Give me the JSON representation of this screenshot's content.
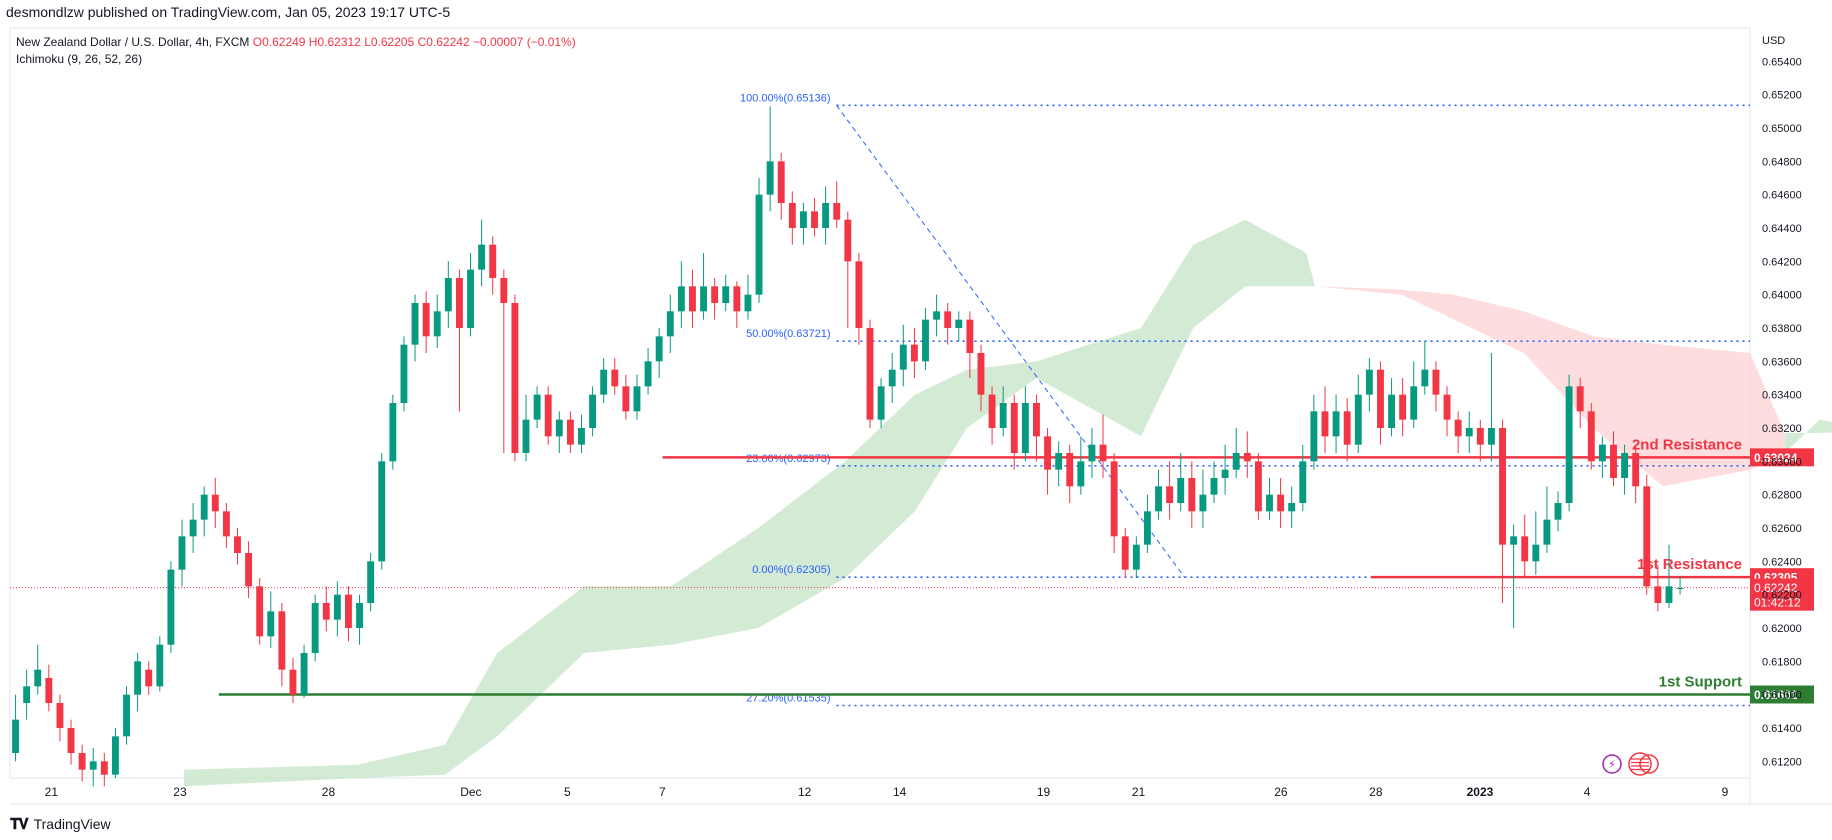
{
  "header": {
    "published": "desmondlzw published on TradingView.com, Jan 05, 2023 19:17 UTC-5",
    "symbol": "New Zealand Dollar / U.S. Dollar, 4h, FXCM",
    "open": "O0.62249",
    "high": "H0.62312",
    "low": "L0.62205",
    "close": "C0.62242",
    "change": "−0.00007 (−0.01%)",
    "indicator": "Ichimoku (9, 26, 52, 26)"
  },
  "footer": {
    "logo": "\u0017TV",
    "brand": "TradingView"
  },
  "colors": {
    "bull": "#089981",
    "bear": "#f23645",
    "fib": "#2962ff",
    "fibtext": "#2962ff",
    "cloud_bull": "#c8e6c9",
    "cloud_bear": "#fdd5d4",
    "resistance": "#f23645",
    "support": "#2e7d32",
    "price_line": "#f23645"
  },
  "chart_data": {
    "type": "candlestick",
    "title": "New Zealand Dollar / U.S. Dollar, 4h, FXCM",
    "currency": "USD",
    "ylim": [
      0.611,
      0.656
    ],
    "y_ticks": [
      "0.65400",
      "0.65200",
      "0.65000",
      "0.64800",
      "0.64600",
      "0.64400",
      "0.64200",
      "0.64000",
      "0.63800",
      "0.63600",
      "0.63400",
      "0.63200",
      "0.63000",
      "0.62800",
      "0.62600",
      "0.62400",
      "0.62200",
      "0.62000",
      "0.61800",
      "0.61600",
      "0.61400",
      "0.61200"
    ],
    "x_ticks": [
      {
        "label": "21",
        "pos": 0.027
      },
      {
        "label": "23",
        "pos": 0.111
      },
      {
        "label": "28",
        "pos": 0.208
      },
      {
        "label": "Dec",
        "pos": 0.301
      },
      {
        "label": "5",
        "pos": 0.364
      },
      {
        "label": "7",
        "pos": 0.426
      },
      {
        "label": "12",
        "pos": 0.519
      },
      {
        "label": "14",
        "pos": 0.581
      },
      {
        "label": "19",
        "pos": 0.675
      },
      {
        "label": "21",
        "pos": 0.737
      },
      {
        "label": "26",
        "pos": 0.83
      },
      {
        "label": "28",
        "pos": 0.892
      },
      {
        "label": "2023",
        "pos": 0.96
      },
      {
        "label": "4",
        "pos": 1.03
      },
      {
        "label": "9",
        "pos": 1.12
      }
    ],
    "levels": [
      {
        "name": "2nd Resistance",
        "price": 0.63024,
        "label": "0.63024",
        "color": "#f23645",
        "x_start_frac": 0.375
      },
      {
        "name": "1st Resistance",
        "price": 0.62305,
        "label": "0.62305",
        "color": "#f23645",
        "x_start_frac": 0.782
      },
      {
        "name": "1st Support",
        "price": 0.61601,
        "label": "0.61601",
        "color": "#2e7d32",
        "x_start_frac": 0.12
      }
    ],
    "current_price": {
      "price": 0.62242,
      "label": "0.62242",
      "countdown": "01:42:12"
    },
    "fib": [
      {
        "label": "100.00%(0.65136)",
        "price": 0.65136
      },
      {
        "label": "50.00%(0.63721)",
        "price": 0.63721
      },
      {
        "label": "23.60%(0.62973)",
        "price": 0.62973
      },
      {
        "label": "0.00%(0.62305)",
        "price": 0.62305
      },
      {
        "label": "27.20%(0.61535)",
        "price": 0.61535
      }
    ],
    "cloud": [
      {
        "t": 0.1,
        "a": 0.6115,
        "b": 0.6105
      },
      {
        "t": 0.2,
        "a": 0.6118,
        "b": 0.611
      },
      {
        "t": 0.25,
        "a": 0.613,
        "b": 0.6112
      },
      {
        "t": 0.28,
        "a": 0.6185,
        "b": 0.6135
      },
      {
        "t": 0.33,
        "a": 0.6225,
        "b": 0.6185
      },
      {
        "t": 0.38,
        "a": 0.6225,
        "b": 0.619
      },
      {
        "t": 0.43,
        "a": 0.626,
        "b": 0.62
      },
      {
        "t": 0.48,
        "a": 0.63,
        "b": 0.623
      },
      {
        "t": 0.52,
        "a": 0.634,
        "b": 0.627
      },
      {
        "t": 0.55,
        "a": 0.6355,
        "b": 0.632
      },
      {
        "t": 0.59,
        "a": 0.636,
        "b": 0.635
      },
      {
        "t": 0.65,
        "a": 0.638,
        "b": 0.6315
      },
      {
        "t": 0.68,
        "a": 0.643,
        "b": 0.638
      },
      {
        "t": 0.71,
        "a": 0.6445,
        "b": 0.6405
      },
      {
        "t": 0.745,
        "a": 0.6425,
        "b": 0.6405
      },
      {
        "t": 0.75,
        "a": 0.6405,
        "b": 0.6405
      },
      {
        "t": 0.8,
        "a": 0.64,
        "b": 0.6403
      },
      {
        "t": 0.83,
        "a": 0.6385,
        "b": 0.64
      },
      {
        "t": 0.87,
        "a": 0.6365,
        "b": 0.639
      },
      {
        "t": 0.91,
        "a": 0.632,
        "b": 0.6375
      },
      {
        "t": 0.95,
        "a": 0.6285,
        "b": 0.637
      },
      {
        "t": 1.0,
        "a": 0.6295,
        "b": 0.6365
      },
      {
        "t": 1.02,
        "a": 0.6305,
        "b": 0.6317
      },
      {
        "t": 1.04,
        "a": 0.6325,
        "b": 0.6317
      },
      {
        "t": 1.065,
        "a": 0.632,
        "b": 0.6318
      },
      {
        "t": 1.07,
        "a": 0.6288,
        "b": 0.6288
      },
      {
        "t": 1.095,
        "a": 0.6285,
        "b": 0.629
      }
    ],
    "candles": [
      [
        0.6125,
        0.6145,
        0.612,
        0.616
      ],
      [
        0.6155,
        0.6165,
        0.6145,
        0.6175
      ],
      [
        0.6165,
        0.6175,
        0.616,
        0.619
      ],
      [
        0.617,
        0.6155,
        0.615,
        0.6178
      ],
      [
        0.6155,
        0.614,
        0.6132,
        0.616
      ],
      [
        0.614,
        0.6125,
        0.6118,
        0.6145
      ],
      [
        0.6125,
        0.6115,
        0.6108,
        0.613
      ],
      [
        0.6115,
        0.612,
        0.6105,
        0.6128
      ],
      [
        0.612,
        0.6112,
        0.6105,
        0.6125
      ],
      [
        0.6112,
        0.6135,
        0.611,
        0.614
      ],
      [
        0.6135,
        0.616,
        0.613,
        0.6165
      ],
      [
        0.616,
        0.618,
        0.615,
        0.6185
      ],
      [
        0.6175,
        0.6165,
        0.616,
        0.618
      ],
      [
        0.6165,
        0.619,
        0.6162,
        0.6195
      ],
      [
        0.619,
        0.6235,
        0.6185,
        0.624
      ],
      [
        0.6235,
        0.6255,
        0.6225,
        0.6265
      ],
      [
        0.6255,
        0.6265,
        0.6245,
        0.6275
      ],
      [
        0.6265,
        0.628,
        0.6255,
        0.6285
      ],
      [
        0.628,
        0.627,
        0.626,
        0.629
      ],
      [
        0.627,
        0.6255,
        0.6248,
        0.6275
      ],
      [
        0.6255,
        0.6245,
        0.6238,
        0.626
      ],
      [
        0.6245,
        0.6225,
        0.6218,
        0.6252
      ],
      [
        0.6225,
        0.6195,
        0.619,
        0.623
      ],
      [
        0.6195,
        0.621,
        0.6188,
        0.6222
      ],
      [
        0.621,
        0.6175,
        0.6165,
        0.6215
      ],
      [
        0.6175,
        0.616,
        0.6155,
        0.6182
      ],
      [
        0.616,
        0.6185,
        0.6158,
        0.619
      ],
      [
        0.6185,
        0.6215,
        0.618,
        0.622
      ],
      [
        0.6215,
        0.6205,
        0.6198,
        0.6225
      ],
      [
        0.6205,
        0.622,
        0.6195,
        0.6228
      ],
      [
        0.622,
        0.62,
        0.6192,
        0.6225
      ],
      [
        0.62,
        0.6215,
        0.619,
        0.622
      ],
      [
        0.6215,
        0.624,
        0.621,
        0.6245
      ],
      [
        0.624,
        0.63,
        0.6235,
        0.6305
      ],
      [
        0.63,
        0.6335,
        0.6295,
        0.634
      ],
      [
        0.6335,
        0.637,
        0.633,
        0.6375
      ],
      [
        0.637,
        0.6395,
        0.636,
        0.64
      ],
      [
        0.6395,
        0.6375,
        0.6365,
        0.6402
      ],
      [
        0.6375,
        0.639,
        0.6368,
        0.64
      ],
      [
        0.639,
        0.641,
        0.638,
        0.642
      ],
      [
        0.641,
        0.638,
        0.633,
        0.6415
      ],
      [
        0.638,
        0.6415,
        0.6375,
        0.6425
      ],
      [
        0.6415,
        0.643,
        0.6405,
        0.6445
      ],
      [
        0.643,
        0.641,
        0.64,
        0.6435
      ],
      [
        0.641,
        0.6395,
        0.6305,
        0.6415
      ],
      [
        0.6395,
        0.6305,
        0.63,
        0.64
      ],
      [
        0.6305,
        0.6325,
        0.63,
        0.634
      ],
      [
        0.6325,
        0.634,
        0.632,
        0.6345
      ],
      [
        0.634,
        0.6315,
        0.631,
        0.6345
      ],
      [
        0.6315,
        0.6325,
        0.6305,
        0.633
      ],
      [
        0.6325,
        0.631,
        0.6305,
        0.633
      ],
      [
        0.631,
        0.632,
        0.6305,
        0.6328
      ],
      [
        0.632,
        0.634,
        0.6315,
        0.6345
      ],
      [
        0.634,
        0.6355,
        0.6335,
        0.6362
      ],
      [
        0.6355,
        0.6345,
        0.634,
        0.6362
      ],
      [
        0.6345,
        0.633,
        0.6325,
        0.6352
      ],
      [
        0.633,
        0.6345,
        0.6325,
        0.6352
      ],
      [
        0.6345,
        0.636,
        0.634,
        0.6368
      ],
      [
        0.636,
        0.6375,
        0.635,
        0.638
      ],
      [
        0.6375,
        0.639,
        0.6365,
        0.64
      ],
      [
        0.639,
        0.6405,
        0.638,
        0.642
      ],
      [
        0.6405,
        0.639,
        0.638,
        0.6415
      ],
      [
        0.639,
        0.6405,
        0.6385,
        0.6425
      ],
      [
        0.6405,
        0.6395,
        0.6385,
        0.641
      ],
      [
        0.6395,
        0.6405,
        0.639,
        0.6412
      ],
      [
        0.6405,
        0.639,
        0.638,
        0.6408
      ],
      [
        0.639,
        0.64,
        0.6385,
        0.6412
      ],
      [
        0.64,
        0.646,
        0.6395,
        0.647
      ],
      [
        0.646,
        0.648,
        0.645,
        0.6513
      ],
      [
        0.648,
        0.6455,
        0.6445,
        0.6485
      ],
      [
        0.6455,
        0.644,
        0.643,
        0.6462
      ],
      [
        0.644,
        0.645,
        0.643,
        0.6455
      ],
      [
        0.645,
        0.644,
        0.6435,
        0.6458
      ],
      [
        0.644,
        0.6455,
        0.643,
        0.6465
      ],
      [
        0.6455,
        0.6445,
        0.644,
        0.6468
      ],
      [
        0.6445,
        0.642,
        0.638,
        0.645
      ],
      [
        0.642,
        0.638,
        0.637,
        0.6425
      ],
      [
        0.638,
        0.6325,
        0.632,
        0.6385
      ],
      [
        0.6325,
        0.6345,
        0.632,
        0.635
      ],
      [
        0.6345,
        0.6355,
        0.6335,
        0.6365
      ],
      [
        0.6355,
        0.637,
        0.6345,
        0.6382
      ],
      [
        0.637,
        0.636,
        0.635,
        0.638
      ],
      [
        0.636,
        0.6385,
        0.6355,
        0.6392
      ],
      [
        0.6385,
        0.639,
        0.6375,
        0.64
      ],
      [
        0.639,
        0.638,
        0.637,
        0.6395
      ],
      [
        0.638,
        0.6385,
        0.6372,
        0.639
      ],
      [
        0.6385,
        0.6365,
        0.635,
        0.639
      ],
      [
        0.6365,
        0.634,
        0.633,
        0.637
      ],
      [
        0.634,
        0.632,
        0.631,
        0.6345
      ],
      [
        0.632,
        0.6335,
        0.6315,
        0.6345
      ],
      [
        0.6335,
        0.6305,
        0.6295,
        0.634
      ],
      [
        0.6305,
        0.6335,
        0.63,
        0.6345
      ],
      [
        0.6335,
        0.6315,
        0.63,
        0.634
      ],
      [
        0.6315,
        0.6295,
        0.628,
        0.632
      ],
      [
        0.6295,
        0.6305,
        0.6285,
        0.6312
      ],
      [
        0.6305,
        0.6285,
        0.6275,
        0.631
      ],
      [
        0.6285,
        0.63,
        0.628,
        0.6315
      ],
      [
        0.63,
        0.631,
        0.629,
        0.632
      ],
      [
        0.631,
        0.63,
        0.629,
        0.6328
      ],
      [
        0.63,
        0.6255,
        0.6245,
        0.6305
      ],
      [
        0.6255,
        0.6235,
        0.623,
        0.626
      ],
      [
        0.6235,
        0.625,
        0.623,
        0.6255
      ],
      [
        0.625,
        0.627,
        0.6245,
        0.628
      ],
      [
        0.627,
        0.6285,
        0.6265,
        0.6295
      ],
      [
        0.6285,
        0.6275,
        0.6265,
        0.63
      ],
      [
        0.6275,
        0.629,
        0.627,
        0.6305
      ],
      [
        0.629,
        0.627,
        0.626,
        0.63
      ],
      [
        0.627,
        0.628,
        0.626,
        0.6295
      ],
      [
        0.628,
        0.629,
        0.6275,
        0.63
      ],
      [
        0.629,
        0.6295,
        0.628,
        0.631
      ],
      [
        0.6295,
        0.6305,
        0.629,
        0.632
      ],
      [
        0.6305,
        0.63,
        0.629,
        0.6318
      ],
      [
        0.63,
        0.627,
        0.6265,
        0.6305
      ],
      [
        0.627,
        0.628,
        0.6265,
        0.629
      ],
      [
        0.628,
        0.627,
        0.626,
        0.629
      ],
      [
        0.627,
        0.6275,
        0.626,
        0.6285
      ],
      [
        0.6275,
        0.63,
        0.627,
        0.631
      ],
      [
        0.63,
        0.633,
        0.6295,
        0.634
      ],
      [
        0.633,
        0.6315,
        0.6305,
        0.6345
      ],
      [
        0.6315,
        0.633,
        0.6305,
        0.634
      ],
      [
        0.633,
        0.631,
        0.63,
        0.6338
      ],
      [
        0.631,
        0.634,
        0.6305,
        0.6352
      ],
      [
        0.634,
        0.6355,
        0.633,
        0.6362
      ],
      [
        0.6355,
        0.632,
        0.631,
        0.636
      ],
      [
        0.632,
        0.634,
        0.6315,
        0.635
      ],
      [
        0.634,
        0.6325,
        0.6315,
        0.635
      ],
      [
        0.6325,
        0.6345,
        0.632,
        0.636
      ],
      [
        0.6345,
        0.6355,
        0.634,
        0.6372
      ],
      [
        0.6355,
        0.634,
        0.633,
        0.636
      ],
      [
        0.634,
        0.6325,
        0.6315,
        0.6345
      ],
      [
        0.6325,
        0.6315,
        0.6305,
        0.633
      ],
      [
        0.6315,
        0.632,
        0.6305,
        0.633
      ],
      [
        0.632,
        0.631,
        0.63,
        0.6325
      ],
      [
        0.631,
        0.632,
        0.63,
        0.6365
      ],
      [
        0.632,
        0.625,
        0.6215,
        0.6325
      ],
      [
        0.625,
        0.6255,
        0.62,
        0.6262
      ],
      [
        0.6255,
        0.624,
        0.623,
        0.6268
      ],
      [
        0.624,
        0.625,
        0.6232,
        0.627
      ],
      [
        0.625,
        0.6265,
        0.6245,
        0.6285
      ],
      [
        0.6265,
        0.6275,
        0.6258,
        0.6282
      ],
      [
        0.6275,
        0.6345,
        0.627,
        0.6352
      ],
      [
        0.6345,
        0.633,
        0.632,
        0.635
      ],
      [
        0.633,
        0.63,
        0.6295,
        0.6335
      ],
      [
        0.63,
        0.631,
        0.629,
        0.6315
      ],
      [
        0.631,
        0.629,
        0.6285,
        0.6318
      ],
      [
        0.629,
        0.6305,
        0.628,
        0.631
      ],
      [
        0.6305,
        0.6285,
        0.6275,
        0.631
      ],
      [
        0.6285,
        0.6225,
        0.622,
        0.6292
      ],
      [
        0.6225,
        0.6215,
        0.621,
        0.6238
      ],
      [
        0.6215,
        0.6225,
        0.6212,
        0.625
      ],
      [
        0.6224,
        0.6224,
        0.622,
        0.6231
      ]
    ]
  },
  "labels": {
    "r2": "2nd Resistance",
    "r1": "1st Resistance",
    "s1": "1st Support",
    "currency": "USD"
  }
}
